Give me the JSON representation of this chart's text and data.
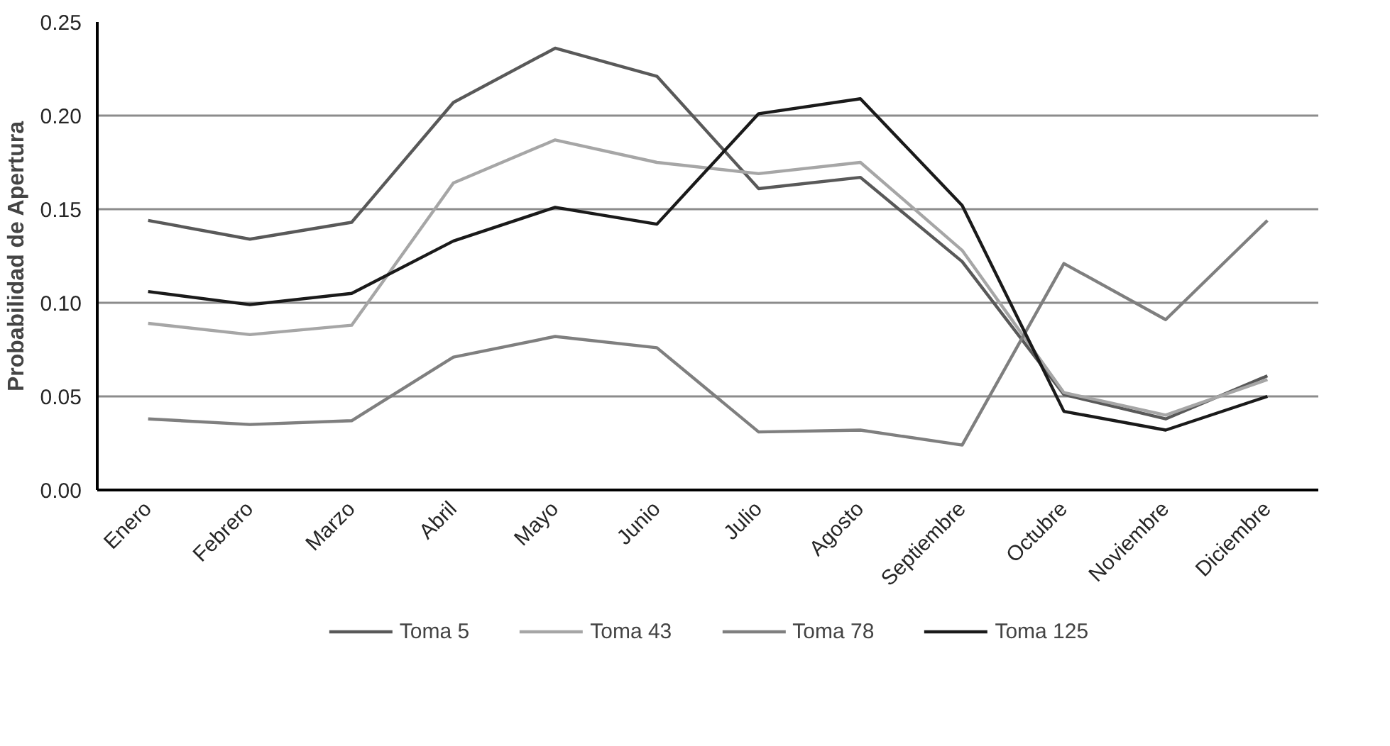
{
  "chart_data": {
    "type": "line",
    "ylabel": "Probabilidad de Apertura",
    "categories": [
      "Enero",
      "Febrero",
      "Marzo",
      "Abril",
      "Mayo",
      "Junio",
      "Julio",
      "Agosto",
      "Septiembre",
      "Octubre",
      "Noviembre",
      "Diciembre"
    ],
    "series": [
      {
        "name": "Toma 5",
        "color": "#595959",
        "values": [
          0.144,
          0.134,
          0.143,
          0.207,
          0.236,
          0.221,
          0.161,
          0.167,
          0.122,
          0.051,
          0.038,
          0.061
        ]
      },
      {
        "name": "Toma 43",
        "color": "#a6a6a6",
        "values": [
          0.089,
          0.083,
          0.088,
          0.164,
          0.187,
          0.175,
          0.169,
          0.175,
          0.128,
          0.052,
          0.04,
          0.059
        ]
      },
      {
        "name": "Toma 78",
        "color": "#7f7f7f",
        "values": [
          0.038,
          0.035,
          0.037,
          0.071,
          0.082,
          0.076,
          0.031,
          0.032,
          0.024,
          0.121,
          0.091,
          0.144
        ]
      },
      {
        "name": "Toma 125",
        "color": "#1a1a1a",
        "values": [
          0.106,
          0.099,
          0.105,
          0.133,
          0.151,
          0.142,
          0.201,
          0.209,
          0.152,
          0.042,
          0.032,
          0.05
        ]
      }
    ],
    "ylim": [
      0,
      0.25
    ],
    "yticks": [
      {
        "value": 0,
        "label": "0.00"
      },
      {
        "value": 0.05,
        "label": "0.05"
      },
      {
        "value": 0.1,
        "label": "0.10"
      },
      {
        "value": 0.15,
        "label": "0.15"
      },
      {
        "value": 0.2,
        "label": "0.20"
      },
      {
        "value": 0.25,
        "label": "0.25"
      }
    ],
    "grid": "y",
    "legend": "bottom",
    "line_style": "solid",
    "marker": "none"
  }
}
